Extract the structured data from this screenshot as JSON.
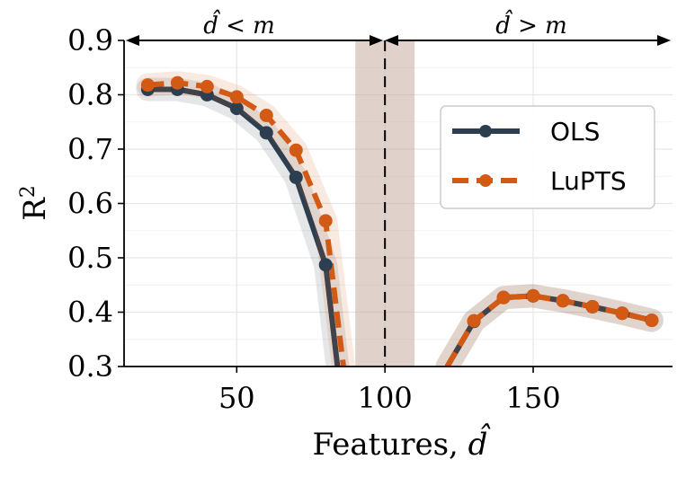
{
  "chart_data": {
    "type": "line",
    "title": "",
    "xlabel": "Features, d̂",
    "ylabel": "R²",
    "xlim": [
      12,
      197
    ],
    "ylim": [
      0.3,
      0.9
    ],
    "x_ticks": [
      50,
      100,
      150
    ],
    "y_ticks": [
      0.3,
      0.4,
      0.5,
      0.6,
      0.7,
      0.8,
      0.9
    ],
    "grid": true,
    "legend_position": "right",
    "threshold_x": 100,
    "shaded_band": [
      90,
      110
    ],
    "annotations": [
      {
        "text": "d̂ < m",
        "region": "left"
      },
      {
        "text": "d̂ > m",
        "region": "right"
      }
    ],
    "series": [
      {
        "name": "OLS",
        "color": "#2d3e50",
        "style": "solid",
        "segments": [
          {
            "x": [
              20,
              30,
              40,
              50,
              60,
              70,
              80,
              84
            ],
            "y": [
              0.81,
              0.81,
              0.8,
              0.775,
              0.73,
              0.648,
              0.487,
              0.3
            ]
          },
          {
            "x": [
              121,
              130,
              140,
              150,
              160,
              170,
              180,
              190
            ],
            "y": [
              0.3,
              0.383,
              0.427,
              0.43,
              0.421,
              0.41,
              0.398,
              0.385
            ]
          }
        ],
        "markers_x": [
          20,
          30,
          40,
          50,
          60,
          70,
          80,
          130,
          140,
          150,
          160,
          170,
          180,
          190
        ]
      },
      {
        "name": "LuPTS",
        "color": "#d35a14",
        "style": "dashed",
        "segments": [
          {
            "x": [
              20,
              30,
              40,
              50,
              60,
              70,
              80,
              86
            ],
            "y": [
              0.818,
              0.822,
              0.815,
              0.796,
              0.762,
              0.698,
              0.568,
              0.3
            ]
          },
          {
            "x": [
              121,
              130,
              140,
              150,
              160,
              170,
              180,
              190
            ],
            "y": [
              0.3,
              0.384,
              0.427,
              0.43,
              0.421,
              0.41,
              0.398,
              0.385
            ]
          }
        ],
        "markers_x": [
          20,
          30,
          40,
          50,
          60,
          70,
          80,
          130,
          140,
          150,
          160,
          170,
          180,
          190
        ]
      }
    ]
  },
  "ui": {
    "ylabel_main": "R",
    "ylabel_sup": "2",
    "xlabel_text": "Features, ",
    "xlabel_var": "d̂",
    "annot_left_var": "d̂",
    "annot_left_rest": " < m",
    "annot_right_var": "d̂",
    "annot_right_rest": " > m",
    "x_tick_labels": [
      "50",
      "100",
      "150"
    ],
    "y_tick_labels": [
      "0.3",
      "0.4",
      "0.5",
      "0.6",
      "0.7",
      "0.8",
      "0.9"
    ],
    "legend_labels": [
      "OLS",
      "LuPTS"
    ]
  }
}
